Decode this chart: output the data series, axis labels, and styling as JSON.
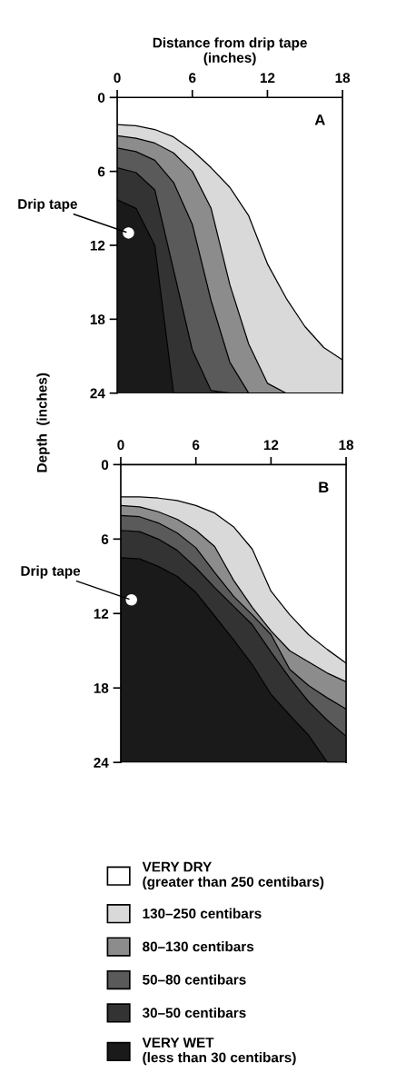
{
  "chart_data": [
    {
      "type": "area",
      "stacked": true,
      "xlabel": "Distance from drip tape\n(inches)",
      "ylabel": "Depth  (inches)",
      "x": [
        0,
        1.5,
        3,
        4.5,
        6,
        7.5,
        9,
        10.5,
        12,
        13.5,
        15,
        16.5,
        18
      ],
      "xlim": [
        0,
        18
      ],
      "xticks": [
        0,
        6,
        12,
        18
      ],
      "ylim": [
        24,
        0
      ],
      "yticks": [
        0,
        6,
        12,
        18,
        24
      ],
      "legend": "bottom",
      "annotations": [
        "A",
        {
          "text": "Drip tape",
          "x": 0.9,
          "y": 11
        }
      ],
      "series": [
        {
          "name": "VERY DRY\n(greater than 250 centibars)",
          "color": "#ffffff",
          "values": [
            2.2,
            2.3,
            2.6,
            3.2,
            4.3,
            5.7,
            7.3,
            9.6,
            13.5,
            16.3,
            18.6,
            20.3,
            21.3
          ]
        },
        {
          "name": "130–250 centibars",
          "color": "#d9d9d9",
          "values": [
            0.9,
            1.0,
            1.1,
            1.3,
            1.7,
            3.3,
            7.9,
            10.4,
            9.7,
            7.7,
            5.4,
            3.7,
            2.7
          ]
        },
        {
          "name": "80–130 centibars",
          "color": "#8c8c8c",
          "values": [
            1.0,
            1.1,
            1.4,
            2.4,
            4.3,
            7.5,
            6.3,
            4.0,
            0.8,
            0,
            0,
            0,
            0
          ]
        },
        {
          "name": "50–80 centibars",
          "color": "#5a5a5a",
          "values": [
            1.6,
            1.7,
            2.4,
            7.1,
            10.2,
            7.3,
            2.5,
            0,
            0,
            0,
            0,
            0,
            0
          ]
        },
        {
          "name": "30–50 centibars",
          "color": "#333333",
          "values": [
            2.6,
            2.9,
            4.5,
            10.0,
            3.5,
            0.2,
            0,
            0,
            0,
            0,
            0,
            0,
            0
          ]
        },
        {
          "name": "VERY WET\n(less than 30 centibars)",
          "color": "#1a1a1a",
          "values": [
            15.7,
            15.0,
            12.0,
            0,
            0,
            0,
            0,
            0,
            0,
            0,
            0,
            0,
            0
          ]
        }
      ]
    },
    {
      "type": "area",
      "stacked": true,
      "x": [
        0,
        1.5,
        3,
        4.5,
        6,
        7.5,
        9,
        10.5,
        12,
        13.5,
        15,
        16.5,
        18
      ],
      "xlim": [
        0,
        18
      ],
      "xticks": [
        0,
        6,
        12,
        18
      ],
      "ylim": [
        24,
        0
      ],
      "yticks": [
        0,
        6,
        12,
        18,
        24
      ],
      "annotations": [
        "B",
        {
          "text": "Drip tape",
          "x": 0.85,
          "y": 10.9
        }
      ],
      "series": [
        {
          "color": "#ffffff",
          "values": [
            2.6,
            2.6,
            2.7,
            2.9,
            3.3,
            3.9,
            5.0,
            6.8,
            10.2,
            12.1,
            13.7,
            14.9,
            16.0
          ]
        },
        {
          "color": "#d9d9d9",
          "values": [
            0.7,
            0.8,
            1.1,
            1.5,
            2.0,
            2.7,
            4.3,
            4.7,
            3.2,
            2.9,
            2.2,
            1.9,
            1.5
          ]
        },
        {
          "color": "#8c8c8c",
          "values": [
            0.8,
            0.8,
            0.9,
            1.1,
            1.4,
            2.1,
            1.3,
            0.6,
            0.3,
            1.5,
            1.9,
            2.0,
            2.2
          ]
        },
        {
          "color": "#5a5a5a",
          "values": [
            1.2,
            1.2,
            1.3,
            1.4,
            1.6,
            1.2,
            0.8,
            0.8,
            1.4,
            0.7,
            1.3,
            1.8,
            2.2
          ]
        },
        {
          "color": "#333333",
          "values": [
            2.2,
            2.2,
            2.2,
            2.1,
            2.0,
            2.3,
            2.7,
            3.2,
            3.4,
            3.0,
            2.7,
            3.4,
            2.1
          ]
        },
        {
          "color": "#1a1a1a",
          "values": [
            16.5,
            16.4,
            15.8,
            15.0,
            13.7,
            11.8,
            9.9,
            7.9,
            5.5,
            3.8,
            2.2,
            0,
            0
          ]
        }
      ]
    }
  ]
}
